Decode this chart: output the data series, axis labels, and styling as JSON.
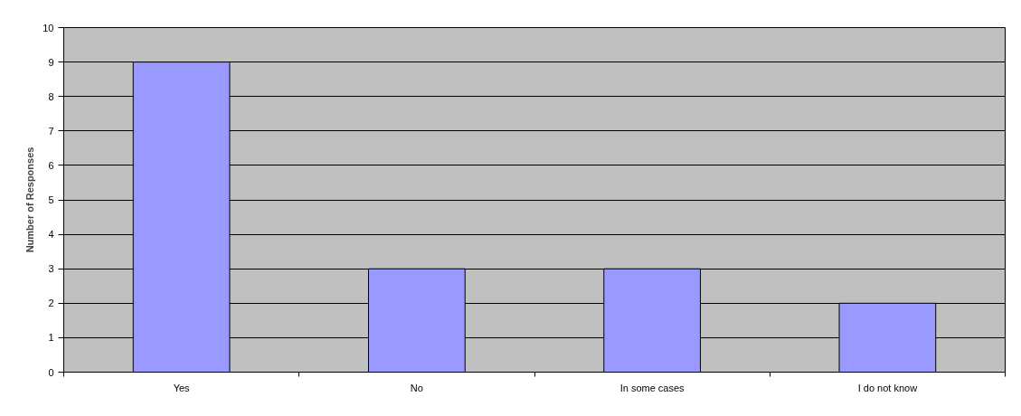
{
  "chart_data": {
    "type": "bar",
    "ylabel": "Number of Responses",
    "categories": [
      "Yes",
      "No",
      "In some cases",
      "I do not know"
    ],
    "values": [
      9,
      3,
      3,
      2
    ],
    "color": "#9999ff",
    "ylim": [
      0,
      10
    ],
    "yticks": [
      0,
      1,
      2,
      3,
      4,
      5,
      6,
      7,
      8,
      9,
      10
    ],
    "grid": "y"
  }
}
